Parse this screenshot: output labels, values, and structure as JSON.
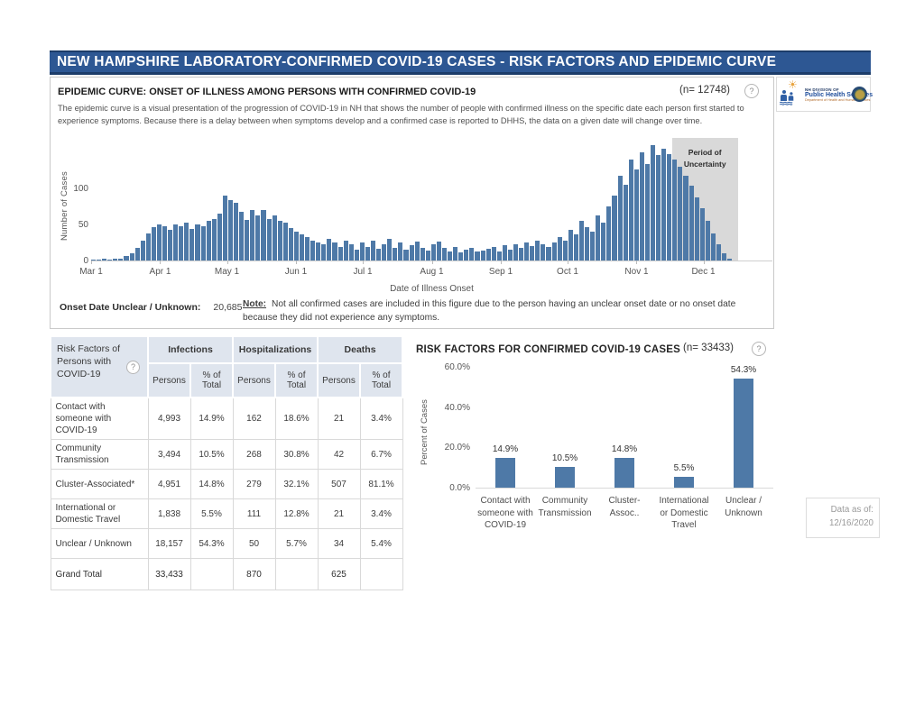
{
  "colors": {
    "accent_blue": "#4e79a7",
    "header_bg": "#2d5793",
    "table_header_bg": "#dfe5ee",
    "uncertainty_gray": "#d9d9d9"
  },
  "icons": {
    "help": "?"
  },
  "page": {
    "header_title": "NEW HAMPSHIRE LABORATORY-CONFIRMED COVID-19 CASES - RISK FACTORS AND EPIDEMIC CURVE"
  },
  "epi_panel": {
    "title": "EPIDEMIC CURVE: ONSET OF ILLNESS AMONG PERSONS WITH CONFIRMED COVID-19",
    "n_label": "(n= 12748)",
    "description": "The epidemic curve is a visual presentation of the progression of COVID-19 in NH that shows the number of people with confirmed illness on the specific date each person first started to experience symptoms. Because there is a delay between when symptoms develop and a confirmed case is reported to DHHS, the data on a given date will change over time.",
    "footer_label": "Onset Date Unclear / Unknown:",
    "footer_value": "20,685",
    "note_label": "Note:",
    "note_text": "Not all confirmed cases are included in this figure due to the person having an unclear onset date or no onset date because they did not experience any symptoms."
  },
  "chart_data": [
    {
      "type": "bar",
      "title": "EPIDEMIC CURVE: ONSET OF ILLNESS AMONG PERSONS WITH CONFIRMED COVID-19",
      "xlabel": "Date of Illness Onset",
      "ylabel": "Number of Cases",
      "ylim": [
        0,
        160
      ],
      "yticks": [
        {
          "label": "0",
          "v": 0
        },
        {
          "label": "50",
          "v": 50
        },
        {
          "label": "100",
          "v": 100
        }
      ],
      "x_domain_days": 306,
      "bars_span_days": 288,
      "x_ticks": [
        {
          "label": "Mar 1",
          "day": 0
        },
        {
          "label": "Apr 1",
          "day": 31
        },
        {
          "label": "May 1",
          "day": 61
        },
        {
          "label": "Jun 1",
          "day": 92
        },
        {
          "label": "Jul 1",
          "day": 122
        },
        {
          "label": "Aug 1",
          "day": 153
        },
        {
          "label": "Sep 1",
          "day": 184
        },
        {
          "label": "Oct 1",
          "day": 214
        },
        {
          "label": "Nov 1",
          "day": 245
        },
        {
          "label": "Dec 1",
          "day": 275
        }
      ],
      "values": [
        1,
        1,
        2,
        1,
        3,
        2,
        6,
        10,
        18,
        28,
        38,
        46,
        50,
        48,
        43,
        50,
        47,
        52,
        44,
        50,
        48,
        55,
        58,
        65,
        90,
        84,
        80,
        68,
        56,
        70,
        63,
        70,
        58,
        62,
        55,
        52,
        45,
        40,
        36,
        32,
        28,
        25,
        22,
        30,
        25,
        19,
        28,
        22,
        15,
        25,
        19,
        28,
        16,
        23,
        30,
        18,
        25,
        15,
        21,
        26,
        18,
        14,
        22,
        26,
        17,
        13,
        19,
        11,
        15,
        18,
        12,
        14,
        16,
        19,
        13,
        21,
        15,
        23,
        17,
        25,
        20,
        27,
        23,
        19,
        25,
        32,
        28,
        43,
        36,
        55,
        46,
        40,
        62,
        52,
        75,
        90,
        118,
        105,
        140,
        126,
        150,
        134,
        160,
        146,
        155,
        148,
        140,
        130,
        118,
        104,
        88,
        72,
        55,
        38,
        22,
        10,
        3
      ],
      "uncertainty": {
        "label": "Period of\nUncertainty",
        "start_index": 106
      },
      "grid": false,
      "legend": "none"
    },
    {
      "type": "bar",
      "title": "RISK FACTORS FOR CONFIRMED COVID-19 CASES",
      "n_label": "(n= 33433)",
      "ylabel": "Percent of Cases",
      "ylim": [
        0,
        60
      ],
      "yticks": [
        {
          "label": "0.0%",
          "v": 0
        },
        {
          "label": "20.0%",
          "v": 20
        },
        {
          "label": "40.0%",
          "v": 40
        },
        {
          "label": "60.0%",
          "v": 60
        }
      ],
      "categories": [
        [
          "Contact with",
          "someone with",
          "COVID-19"
        ],
        [
          "Community",
          "Transmission"
        ],
        [
          "Cluster-Assoc.."
        ],
        [
          "International",
          "or Domestic",
          "Travel"
        ],
        [
          "Unclear /",
          "Unknown"
        ]
      ],
      "values": [
        14.9,
        10.5,
        14.8,
        5.5,
        54.3
      ],
      "value_labels": [
        "14.9%",
        "10.5%",
        "14.8%",
        "5.5%",
        "54.3%"
      ],
      "grid": false,
      "legend": "none"
    }
  ],
  "risk_table": {
    "corner_header": "Risk Factors of Persons with COVID-19",
    "groups": [
      "Infections",
      "Hospitalizations",
      "Deaths"
    ],
    "sub_headers": [
      "Persons",
      "% of Total"
    ],
    "rows": [
      {
        "label": "Contact with someone with COVID-19",
        "cells": [
          "4,993",
          "14.9%",
          "162",
          "18.6%",
          "21",
          "3.4%"
        ]
      },
      {
        "label": "Community Transmission",
        "cells": [
          "3,494",
          "10.5%",
          "268",
          "30.8%",
          "42",
          "6.7%"
        ]
      },
      {
        "label": "Cluster-Associated*",
        "cells": [
          "4,951",
          "14.8%",
          "279",
          "32.1%",
          "507",
          "81.1%"
        ]
      },
      {
        "label": "International or Domestic Travel",
        "cells": [
          "1,838",
          "5.5%",
          "111",
          "12.8%",
          "21",
          "3.4%"
        ]
      },
      {
        "label": "Unclear / Unknown",
        "cells": [
          "18,157",
          "54.3%",
          "50",
          "5.7%",
          "34",
          "5.4%"
        ]
      }
    ],
    "grand_total": {
      "label": "Grand Total",
      "cells": [
        "33,433",
        "",
        "870",
        "",
        "625",
        ""
      ]
    }
  },
  "logo": {
    "org_line1": "NH DIVISION OF",
    "org_line2": "Public Health Services",
    "tagline": "Department of Health and Human Services",
    "wave_glyph": "≈≈≈",
    "sun_glyph": "☀"
  },
  "data_as_of": {
    "label": "Data as of:",
    "date": "12/16/2020"
  }
}
